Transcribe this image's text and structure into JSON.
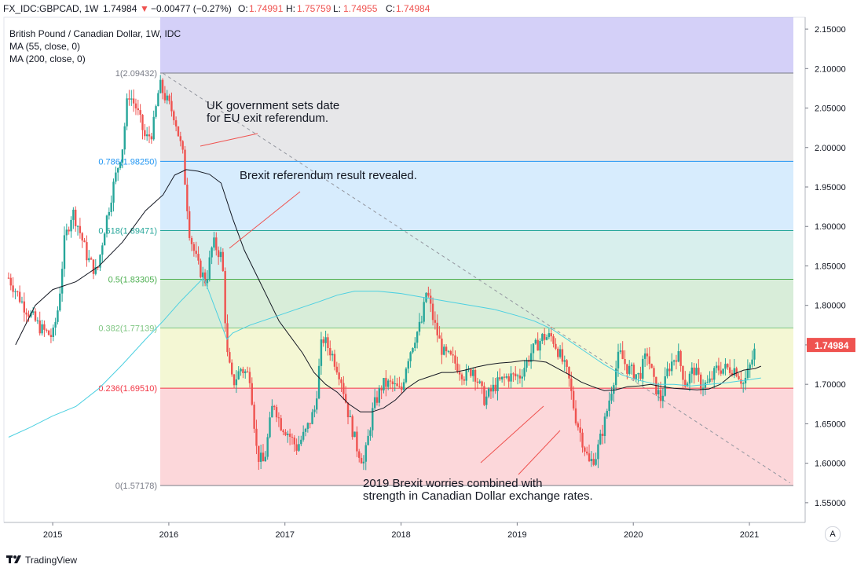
{
  "header": {
    "symbol": "FX_IDC:GBPCAD, 1W",
    "last": "1.74984",
    "change": "−0.00477 (−0.27%)",
    "open_label": "O:",
    "open": "1.74991",
    "high_label": "H:",
    "high": "1.75759",
    "low_label": "L:",
    "low": "1.74955",
    "close_label": "C:",
    "close": "1.74984",
    "down_arrow": "▼"
  },
  "legend": {
    "title": "British Pound / Canadian Dollar, 1W, IDC",
    "ma1": "MA (55, close, 0)",
    "ma2": "MA (200, close, 0)"
  },
  "footer": {
    "brand": "TradingView",
    "scale_button": "A"
  },
  "colors": {
    "up": "#26a69a",
    "down": "#ef5350",
    "ma55": "#131722",
    "ma200": "#4dd0e1",
    "trend": "#9598a1",
    "annotation_line": "#ef5350"
  },
  "chart_data": {
    "type": "candlestick",
    "ylim": [
      1.525,
      2.165
    ],
    "xlim": [
      "2014-07",
      "2021-09"
    ],
    "yticks": [
      "2.15000",
      "2.10000",
      "2.05000",
      "2.00000",
      "1.95000",
      "1.90000",
      "1.85000",
      "1.80000",
      "1.75000",
      "1.70000",
      "1.65000",
      "1.60000",
      "1.55000"
    ],
    "xticks": [
      {
        "label": "2015",
        "t": 2015.0
      },
      {
        "label": "2016",
        "t": 2016.0
      },
      {
        "label": "2017",
        "t": 2017.0
      },
      {
        "label": "2018",
        "t": 2018.0
      },
      {
        "label": "2019",
        "t": 2019.0
      },
      {
        "label": "2020",
        "t": 2020.0
      },
      {
        "label": "2021",
        "t": 2021.0
      }
    ],
    "price_label": "1.74984",
    "fibonacci": [
      {
        "label": "1(2.09432)",
        "value": 2.09432,
        "color": "#787b86",
        "fill": "rgba(120,123,134,0.18)"
      },
      {
        "label": "0.786(1.98250)",
        "value": 1.9825,
        "color": "#2196f3",
        "fill": "rgba(33,150,243,0.18)"
      },
      {
        "label": "0.618(1.89471)",
        "value": 1.89471,
        "color": "#26a69a",
        "fill": "rgba(38,166,154,0.18)"
      },
      {
        "label": "0.5(1.83305)",
        "value": 1.83305,
        "color": "#4caf50",
        "fill": "rgba(76,175,80,0.22)"
      },
      {
        "label": "0.382(1.77139)",
        "value": 1.77139,
        "color": "#81c784",
        "fill": "rgba(205,220,57,0.22)"
      },
      {
        "label": "0.236(1.69510)",
        "value": 1.6951,
        "color": "#f23645",
        "fill": "rgba(242,54,69,0.2)"
      },
      {
        "label": "0(1.57178)",
        "value": 1.57178,
        "color": "#787b86",
        "fill": null
      }
    ],
    "fib_top_fill": {
      "value": 2.165,
      "fill": "rgba(101,86,230,0.28)"
    },
    "annotations": [
      {
        "text": "UK government sets date\nfor EU exit referendum."
      },
      {
        "text": "Brexit referendum result revealed."
      },
      {
        "text": "2019 Brexit worries combined with\nstrength in Canadian Dollar exchange rates."
      }
    ],
    "series": [
      {
        "name": "GBPCAD",
        "type": "candles",
        "anchors": [
          [
            2014.62,
            1.835
          ],
          [
            2014.75,
            1.8
          ],
          [
            2014.9,
            1.77
          ],
          [
            2015.0,
            1.76
          ],
          [
            2015.05,
            1.8
          ],
          [
            2015.1,
            1.88
          ],
          [
            2015.17,
            1.92
          ],
          [
            2015.22,
            1.9
          ],
          [
            2015.3,
            1.86
          ],
          [
            2015.38,
            1.84
          ],
          [
            2015.45,
            1.9
          ],
          [
            2015.52,
            1.95
          ],
          [
            2015.6,
            2.0
          ],
          [
            2015.65,
            2.07
          ],
          [
            2015.72,
            2.05
          ],
          [
            2015.8,
            2.01
          ],
          [
            2015.86,
            2.02
          ],
          [
            2015.92,
            2.08
          ],
          [
            2015.98,
            2.06
          ],
          [
            2016.05,
            2.04
          ],
          [
            2016.12,
            1.99
          ],
          [
            2016.18,
            1.89
          ],
          [
            2016.25,
            1.85
          ],
          [
            2016.32,
            1.83
          ],
          [
            2016.38,
            1.88
          ],
          [
            2016.46,
            1.86
          ],
          [
            2016.5,
            1.74
          ],
          [
            2016.55,
            1.7
          ],
          [
            2016.62,
            1.72
          ],
          [
            2016.7,
            1.71
          ],
          [
            2016.76,
            1.61
          ],
          [
            2016.82,
            1.6
          ],
          [
            2016.9,
            1.68
          ],
          [
            2016.96,
            1.65
          ],
          [
            2017.02,
            1.64
          ],
          [
            2017.1,
            1.62
          ],
          [
            2017.18,
            1.64
          ],
          [
            2017.26,
            1.67
          ],
          [
            2017.32,
            1.76
          ],
          [
            2017.4,
            1.74
          ],
          [
            2017.48,
            1.71
          ],
          [
            2017.55,
            1.66
          ],
          [
            2017.62,
            1.62
          ],
          [
            2017.68,
            1.6
          ],
          [
            2017.76,
            1.67
          ],
          [
            2017.84,
            1.7
          ],
          [
            2017.92,
            1.7
          ],
          [
            2018.0,
            1.69
          ],
          [
            2018.05,
            1.73
          ],
          [
            2018.12,
            1.76
          ],
          [
            2018.18,
            1.78
          ],
          [
            2018.22,
            1.82
          ],
          [
            2018.28,
            1.78
          ],
          [
            2018.36,
            1.74
          ],
          [
            2018.45,
            1.73
          ],
          [
            2018.55,
            1.71
          ],
          [
            2018.62,
            1.72
          ],
          [
            2018.72,
            1.68
          ],
          [
            2018.82,
            1.7
          ],
          [
            2018.92,
            1.71
          ],
          [
            2019.02,
            1.71
          ],
          [
            2019.12,
            1.74
          ],
          [
            2019.22,
            1.76
          ],
          [
            2019.3,
            1.76
          ],
          [
            2019.36,
            1.74
          ],
          [
            2019.44,
            1.71
          ],
          [
            2019.5,
            1.66
          ],
          [
            2019.56,
            1.63
          ],
          [
            2019.62,
            1.6
          ],
          [
            2019.68,
            1.61
          ],
          [
            2019.75,
            1.65
          ],
          [
            2019.82,
            1.7
          ],
          [
            2019.88,
            1.74
          ],
          [
            2019.95,
            1.72
          ],
          [
            2020.05,
            1.71
          ],
          [
            2020.12,
            1.74
          ],
          [
            2020.18,
            1.7
          ],
          [
            2020.24,
            1.68
          ],
          [
            2020.3,
            1.72
          ],
          [
            2020.38,
            1.74
          ],
          [
            2020.45,
            1.7
          ],
          [
            2020.52,
            1.72
          ],
          [
            2020.58,
            1.7
          ],
          [
            2020.65,
            1.7
          ],
          [
            2020.72,
            1.72
          ],
          [
            2020.8,
            1.72
          ],
          [
            2020.88,
            1.72
          ],
          [
            2020.95,
            1.7
          ],
          [
            2021.0,
            1.72
          ],
          [
            2021.06,
            1.75
          ]
        ]
      },
      {
        "name": "MA 55",
        "type": "line",
        "points": [
          [
            2014.68,
            1.75
          ],
          [
            2014.85,
            1.8
          ],
          [
            2015.0,
            1.82
          ],
          [
            2015.2,
            1.83
          ],
          [
            2015.4,
            1.85
          ],
          [
            2015.6,
            1.88
          ],
          [
            2015.8,
            1.92
          ],
          [
            2015.95,
            1.94
          ],
          [
            2016.05,
            1.965
          ],
          [
            2016.15,
            1.972
          ],
          [
            2016.25,
            1.97
          ],
          [
            2016.35,
            1.966
          ],
          [
            2016.45,
            1.955
          ],
          [
            2016.55,
            1.91
          ],
          [
            2016.65,
            1.87
          ],
          [
            2016.75,
            1.84
          ],
          [
            2016.85,
            1.81
          ],
          [
            2016.95,
            1.78
          ],
          [
            2017.05,
            1.76
          ],
          [
            2017.15,
            1.74
          ],
          [
            2017.25,
            1.715
          ],
          [
            2017.35,
            1.7
          ],
          [
            2017.45,
            1.69
          ],
          [
            2017.55,
            1.675
          ],
          [
            2017.65,
            1.665
          ],
          [
            2017.75,
            1.665
          ],
          [
            2017.85,
            1.67
          ],
          [
            2017.95,
            1.68
          ],
          [
            2018.05,
            1.695
          ],
          [
            2018.15,
            1.705
          ],
          [
            2018.25,
            1.71
          ],
          [
            2018.35,
            1.715
          ],
          [
            2018.45,
            1.715
          ],
          [
            2018.55,
            1.718
          ],
          [
            2018.65,
            1.722
          ],
          [
            2018.75,
            1.725
          ],
          [
            2018.85,
            1.727
          ],
          [
            2018.95,
            1.728
          ],
          [
            2019.05,
            1.73
          ],
          [
            2019.15,
            1.73
          ],
          [
            2019.25,
            1.728
          ],
          [
            2019.35,
            1.72
          ],
          [
            2019.45,
            1.712
          ],
          [
            2019.55,
            1.703
          ],
          [
            2019.65,
            1.697
          ],
          [
            2019.75,
            1.692
          ],
          [
            2019.85,
            1.693
          ],
          [
            2019.95,
            1.697
          ],
          [
            2020.05,
            1.698
          ],
          [
            2020.15,
            1.7
          ],
          [
            2020.25,
            1.697
          ],
          [
            2020.35,
            1.695
          ],
          [
            2020.45,
            1.694
          ],
          [
            2020.55,
            1.693
          ],
          [
            2020.65,
            1.694
          ],
          [
            2020.75,
            1.7
          ],
          [
            2020.85,
            1.712
          ],
          [
            2020.95,
            1.718
          ],
          [
            2021.05,
            1.72
          ],
          [
            2021.1,
            1.723
          ]
        ]
      },
      {
        "name": "MA 200",
        "type": "line",
        "points": [
          [
            2014.62,
            1.633
          ],
          [
            2014.8,
            1.645
          ],
          [
            2015.0,
            1.66
          ],
          [
            2015.2,
            1.672
          ],
          [
            2015.4,
            1.695
          ],
          [
            2015.6,
            1.725
          ],
          [
            2015.8,
            1.757
          ],
          [
            2015.95,
            1.78
          ],
          [
            2016.1,
            1.805
          ],
          [
            2016.3,
            1.835
          ],
          [
            2016.5,
            1.757
          ],
          [
            2016.55,
            1.765
          ],
          [
            2016.7,
            1.775
          ],
          [
            2016.9,
            1.785
          ],
          [
            2017.1,
            1.795
          ],
          [
            2017.3,
            1.805
          ],
          [
            2017.45,
            1.813
          ],
          [
            2017.6,
            1.818
          ],
          [
            2017.8,
            1.818
          ],
          [
            2018.0,
            1.815
          ],
          [
            2018.2,
            1.81
          ],
          [
            2018.4,
            1.805
          ],
          [
            2018.6,
            1.8
          ],
          [
            2018.8,
            1.795
          ],
          [
            2019.0,
            1.787
          ],
          [
            2019.15,
            1.78
          ],
          [
            2019.3,
            1.77
          ],
          [
            2019.45,
            1.755
          ],
          [
            2019.6,
            1.74
          ],
          [
            2019.75,
            1.725
          ],
          [
            2019.9,
            1.712
          ],
          [
            2020.05,
            1.705
          ],
          [
            2020.2,
            1.7
          ],
          [
            2020.35,
            1.7
          ],
          [
            2020.5,
            1.698
          ],
          [
            2020.65,
            1.7
          ],
          [
            2020.8,
            1.702
          ],
          [
            2020.95,
            1.705
          ],
          [
            2021.1,
            1.708
          ]
        ]
      }
    ],
    "trendline": {
      "from": [
        2015.95,
        2.094
      ],
      "to": [
        2021.35,
        1.575
      ]
    }
  }
}
